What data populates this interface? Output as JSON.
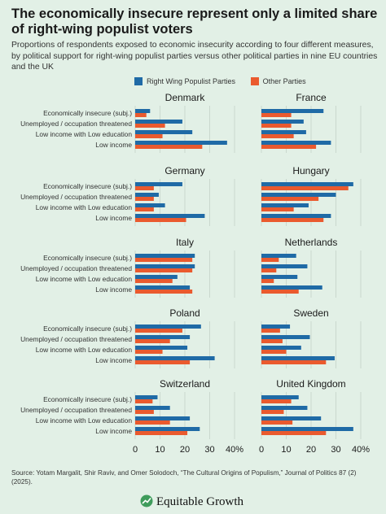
{
  "title": "The economically insecure represent only a limited share of right-wing populist voters",
  "subtitle": "Proportions of respondents exposed to economic insecurity according to four different measures, by political support for right-wing populist parties versus other political parties in nine EU countries and the UK",
  "legend": [
    {
      "label": "Right Wing Populist Parties",
      "color": "#1f6aa6"
    },
    {
      "label": "Other Parties",
      "color": "#ea5a2e"
    }
  ],
  "chart_data": {
    "type": "bar",
    "orientation": "horizontal",
    "categories": [
      "Economically insecure (subj.)",
      "Unemployed / occupation threatened",
      "Low income with Low education",
      "Low income"
    ],
    "x_ticks": [
      "0",
      "10",
      "20",
      "30",
      "40%"
    ],
    "xlim": [
      0,
      40
    ],
    "grid": true,
    "legend_position": "top",
    "series_names": [
      "Right Wing Populist Parties",
      "Other Parties"
    ],
    "panels": [
      {
        "country": "Denmark",
        "right_wing": [
          6,
          19,
          23,
          37
        ],
        "other": [
          4.5,
          12,
          11,
          27
        ]
      },
      {
        "country": "France",
        "right_wing": [
          25,
          17,
          18,
          28
        ],
        "other": [
          12,
          12,
          13,
          22
        ]
      },
      {
        "country": "Germany",
        "right_wing": [
          19,
          9.5,
          12,
          28
        ],
        "other": [
          7.5,
          7.5,
          7.5,
          20.5
        ]
      },
      {
        "country": "Hungary",
        "right_wing": [
          37,
          30,
          19,
          28
        ],
        "other": [
          35,
          23,
          13,
          25
        ]
      },
      {
        "country": "Italy",
        "right_wing": [
          24,
          24,
          17,
          22
        ],
        "other": [
          23,
          23,
          15,
          23
        ]
      },
      {
        "country": "Netherlands",
        "right_wing": [
          14,
          18.5,
          14.5,
          24.5
        ],
        "other": [
          7,
          6,
          5,
          15
        ]
      },
      {
        "country": "Poland",
        "right_wing": [
          26.5,
          22,
          21,
          32
        ],
        "other": [
          19,
          14,
          11,
          22
        ]
      },
      {
        "country": "Sweden",
        "right_wing": [
          11.5,
          19.5,
          16,
          29.5
        ],
        "other": [
          7.5,
          8.5,
          10,
          26
        ]
      },
      {
        "country": "Switzerland",
        "right_wing": [
          9,
          14,
          22,
          26
        ],
        "other": [
          7,
          7.5,
          14,
          21
        ]
      },
      {
        "country": "United Kingdom",
        "right_wing": [
          15,
          18.5,
          24,
          37
        ],
        "other": [
          12,
          9,
          12.5,
          26
        ]
      }
    ]
  },
  "source": "Source: Yotam Margalit, Shir Raviv, and Omer Solodoch, “The Cultural Origins of Populism,” Journal of Politics 87 (2) (2025).",
  "brand": "Equitable Growth"
}
